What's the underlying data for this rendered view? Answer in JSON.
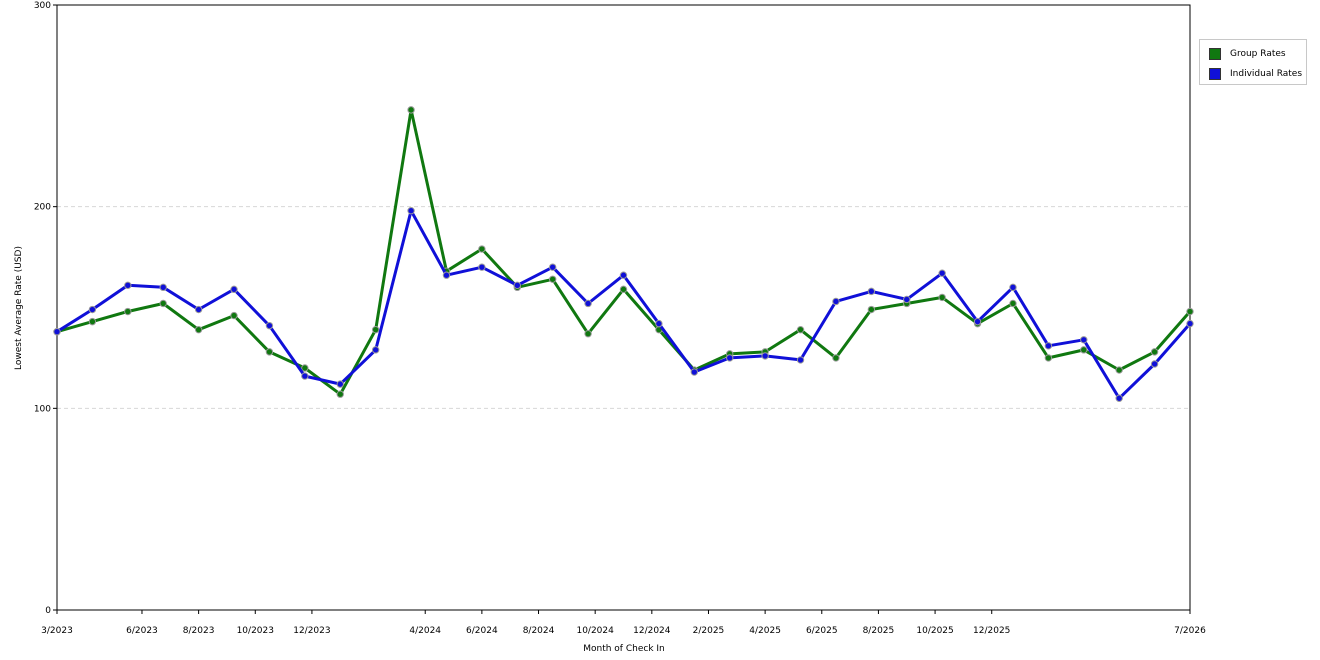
{
  "chart_data": {
    "type": "line",
    "xlabel": "Month of Check In",
    "ylabel": "Lowest Average Rate (USD)",
    "ylim": [
      0,
      300
    ],
    "y_ticks": [
      0,
      100,
      200,
      300
    ],
    "grid": "horizontal dashed",
    "legend_position": "top-right",
    "x_tick_labels": [
      "3/2023",
      "6/2023",
      "8/2023",
      "10/2023",
      "12/2023",
      "4/2024",
      "6/2024",
      "8/2024",
      "10/2024",
      "12/2024",
      "2/2025",
      "4/2025",
      "6/2025",
      "8/2025",
      "10/2025",
      "12/2025",
      "7/2026"
    ],
    "series": [
      {
        "name": "Group Rates",
        "color": "#107810",
        "values": [
          138,
          143,
          148,
          152,
          139,
          146,
          128,
          120,
          107,
          139,
          248,
          168,
          179,
          160,
          164,
          137,
          159,
          139,
          119,
          127,
          128,
          139,
          125,
          149,
          152,
          155,
          142,
          152,
          125,
          129,
          119,
          128,
          148
        ]
      },
      {
        "name": "Individual Rates",
        "color": "#1010d8",
        "values": [
          138,
          149,
          161,
          160,
          149,
          159,
          141,
          116,
          112,
          129,
          198,
          166,
          170,
          161,
          170,
          152,
          166,
          142,
          118,
          125,
          126,
          124,
          153,
          158,
          154,
          167,
          143,
          160,
          131,
          134,
          105,
          122,
          142
        ]
      }
    ]
  }
}
